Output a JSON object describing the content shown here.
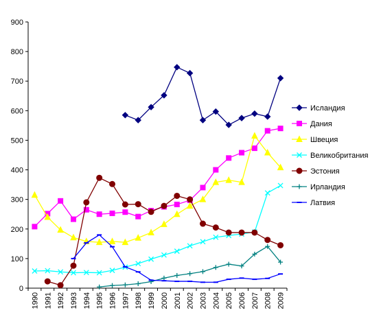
{
  "chart_data": {
    "type": "line",
    "title": "",
    "xlabel": "",
    "ylabel": "",
    "ylim": [
      0,
      900
    ],
    "yticks": [
      "0",
      "100",
      "200",
      "300",
      "400",
      "500",
      "600",
      "700",
      "800",
      "900"
    ],
    "x": [
      "1990",
      "1991",
      "1992",
      "1993",
      "1994",
      "1995",
      "1996",
      "1997",
      "1998",
      "1999",
      "2000",
      "2001",
      "2002",
      "2003",
      "2004",
      "2005",
      "2006",
      "2007",
      "2008",
      "2009"
    ],
    "grid": false,
    "legend_position": "right",
    "series": [
      {
        "name": "Исландия",
        "color": "#000080",
        "marker": "diamond",
        "values": [
          null,
          null,
          null,
          null,
          null,
          null,
          null,
          585,
          568,
          612,
          652,
          747,
          727,
          568,
          597,
          552,
          575,
          590,
          580,
          710
        ]
      },
      {
        "name": "Дания",
        "color": "#ff00ff",
        "marker": "square",
        "values": [
          208,
          252,
          295,
          233,
          265,
          250,
          253,
          257,
          242,
          262,
          275,
          283,
          297,
          340,
          400,
          440,
          458,
          473,
          532,
          540
        ]
      },
      {
        "name": "Швеция",
        "color": "#ffff00",
        "marker": "triangle",
        "values": [
          315,
          240,
          197,
          171,
          158,
          155,
          158,
          155,
          170,
          188,
          216,
          250,
          278,
          300,
          358,
          365,
          358,
          515,
          458,
          408
        ]
      },
      {
        "name": "Великобритания",
        "color": "#00ffff",
        "marker": "x",
        "values": [
          58,
          59,
          55,
          52,
          53,
          52,
          60,
          71,
          83,
          98,
          112,
          125,
          143,
          157,
          172,
          178,
          183,
          190,
          322,
          347
        ]
      },
      {
        "name": "Эстония",
        "color": "#800000",
        "marker": "circle",
        "values": [
          null,
          23,
          10,
          76,
          290,
          373,
          352,
          283,
          284,
          258,
          278,
          312,
          300,
          218,
          205,
          188,
          188,
          188,
          163,
          145
        ]
      },
      {
        "name": "Ирландия",
        "color": "#008080",
        "marker": "plus",
        "values": [
          null,
          null,
          null,
          null,
          null,
          4,
          9,
          11,
          15,
          22,
          34,
          43,
          49,
          56,
          70,
          81,
          75,
          115,
          141,
          88
        ]
      },
      {
        "name": "Латвия",
        "color": "#0000ff",
        "marker": "dash",
        "values": [
          null,
          null,
          null,
          100,
          153,
          180,
          140,
          72,
          55,
          27,
          25,
          23,
          23,
          20,
          20,
          30,
          34,
          30,
          33,
          48
        ]
      }
    ]
  }
}
